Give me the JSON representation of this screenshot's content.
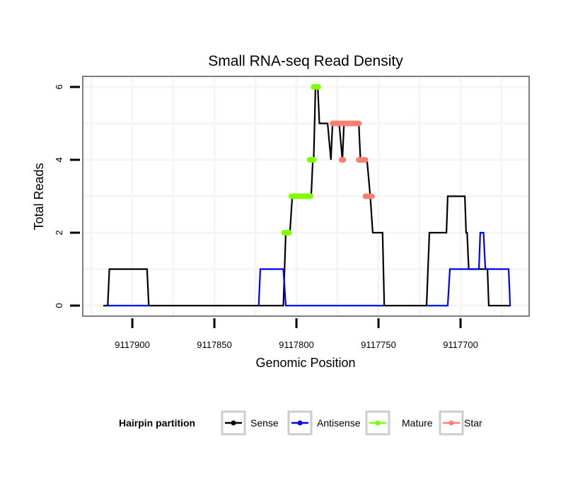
{
  "chart_data": {
    "type": "line",
    "title": "Small RNA-seq Read Density",
    "xlabel": "Genomic Position",
    "ylabel": "Total Reads",
    "xlim": [
      9117930.2,
      9117658.2
    ],
    "x_reversed": true,
    "ylim": [
      -0.29,
      6.29
    ],
    "x_ticks": [
      9117900,
      9117850,
      9117800,
      9117750,
      9117700
    ],
    "x_tick_labels": [
      "9117900",
      "9117850",
      "9117800",
      "9117750",
      "9117700"
    ],
    "y_ticks": [
      0,
      2,
      4,
      6
    ],
    "y_tick_labels": [
      "0",
      "2",
      "4",
      "6"
    ],
    "grid": true,
    "legend": {
      "title": "Hairpin partition",
      "placement": "bottom",
      "entries": [
        {
          "name": "Sense",
          "color": "#000000"
        },
        {
          "name": "Antisense",
          "color": "#0000ff"
        },
        {
          "name": "Mature",
          "color": "#7fff00"
        },
        {
          "name": "Star",
          "color": "#fa8072"
        }
      ]
    },
    "series": [
      {
        "name": "Sense",
        "kind": "line",
        "color": "#000000",
        "segments": [
          [
            [
              9117917.7,
              0
            ],
            [
              9117915,
              0
            ],
            [
              9117914,
              1
            ],
            [
              9117891,
              1
            ],
            [
              9117890,
              0
            ],
            [
              9117808,
              0
            ],
            [
              9117806.5,
              2
            ],
            [
              9117804,
              2
            ],
            [
              9117802.5,
              3
            ],
            [
              9117791,
              3
            ],
            [
              9117790,
              4
            ],
            [
              9117789.5,
              4
            ],
            [
              9117788.4,
              6
            ],
            [
              9117787,
              6
            ],
            [
              9117786,
              5
            ],
            [
              9117781,
              5
            ],
            [
              9117779,
              4
            ],
            [
              9117778,
              5
            ],
            [
              9117774,
              5
            ],
            [
              9117772,
              4
            ],
            [
              9117771,
              5
            ],
            [
              9117762,
              5
            ],
            [
              9117761,
              4
            ],
            [
              9117757,
              4
            ],
            [
              9117755,
              3
            ],
            [
              9117753.5,
              2
            ],
            [
              9117747.5,
              2
            ],
            [
              9117746.5,
              0
            ],
            [
              9117720.7,
              0
            ],
            [
              9117719,
              2
            ],
            [
              9117708.6,
              2
            ],
            [
              9117707.8,
              3
            ],
            [
              9117697.4,
              3
            ],
            [
              9117696.6,
              2
            ],
            [
              9117696,
              2
            ],
            [
              9117695,
              1
            ],
            [
              9117683.6,
              1
            ],
            [
              9117682.8,
              0
            ],
            [
              9117669.4,
              0
            ]
          ]
        ]
      },
      {
        "name": "Antisense",
        "kind": "line",
        "color": "#0000ff",
        "segments": [
          [
            [
              9117915,
              0
            ],
            [
              9117890,
              0
            ]
          ],
          [
            [
              9117823,
              0
            ],
            [
              9117822,
              1
            ],
            [
              9117808,
              1
            ],
            [
              9117806.5,
              0
            ],
            [
              9117747,
              0
            ]
          ],
          [
            [
              9117720.7,
              0
            ],
            [
              9117707.8,
              0
            ],
            [
              9117706.5,
              1
            ],
            [
              9117688.8,
              1
            ],
            [
              9117688,
              2
            ],
            [
              9117686,
              2
            ],
            [
              9117684.9,
              1
            ],
            [
              9117670.7,
              1
            ],
            [
              9117669.8,
              0
            ]
          ]
        ]
      },
      {
        "name": "Mature",
        "kind": "points",
        "color": "#7fff00",
        "points": [
          [
            9117807.5,
            2
          ],
          [
            9117806.5,
            2
          ],
          [
            9117805.5,
            2
          ],
          [
            9117804.5,
            2
          ],
          [
            9117803,
            3
          ],
          [
            9117802,
            3
          ],
          [
            9117801,
            3
          ],
          [
            9117800,
            3
          ],
          [
            9117799,
            3
          ],
          [
            9117798,
            3
          ],
          [
            9117797,
            3
          ],
          [
            9117796,
            3
          ],
          [
            9117795,
            3
          ],
          [
            9117794,
            3
          ],
          [
            9117793,
            3
          ],
          [
            9117792,
            3
          ],
          [
            9117791.5,
            3
          ],
          [
            9117792,
            4
          ],
          [
            9117791,
            4
          ],
          [
            9117790,
            4
          ],
          [
            9117789.5,
            4
          ],
          [
            9117789.5,
            6
          ],
          [
            9117788.5,
            6
          ],
          [
            9117787.5,
            6
          ],
          [
            9117786.8,
            6
          ]
        ]
      },
      {
        "name": "Star",
        "kind": "points",
        "color": "#fa8072",
        "points": [
          [
            9117778,
            5
          ],
          [
            9117777,
            5
          ],
          [
            9117776,
            5
          ],
          [
            9117775,
            5
          ],
          [
            9117774,
            5
          ],
          [
            9117773,
            5
          ],
          [
            9117772,
            5
          ],
          [
            9117771,
            5
          ],
          [
            9117770,
            5
          ],
          [
            9117769,
            5
          ],
          [
            9117768,
            5
          ],
          [
            9117767,
            5
          ],
          [
            9117766,
            5
          ],
          [
            9117765,
            5
          ],
          [
            9117764,
            5
          ],
          [
            9117763,
            5
          ],
          [
            9117762,
            5
          ],
          [
            9117772.5,
            4
          ],
          [
            9117771.5,
            4
          ],
          [
            9117762,
            4
          ],
          [
            9117761,
            4
          ],
          [
            9117760,
            4
          ],
          [
            9117759,
            4
          ],
          [
            9117758,
            4
          ],
          [
            9117758,
            3
          ],
          [
            9117757,
            3
          ],
          [
            9117756,
            3
          ],
          [
            9117755,
            3
          ],
          [
            9117754,
            3
          ]
        ]
      }
    ]
  }
}
